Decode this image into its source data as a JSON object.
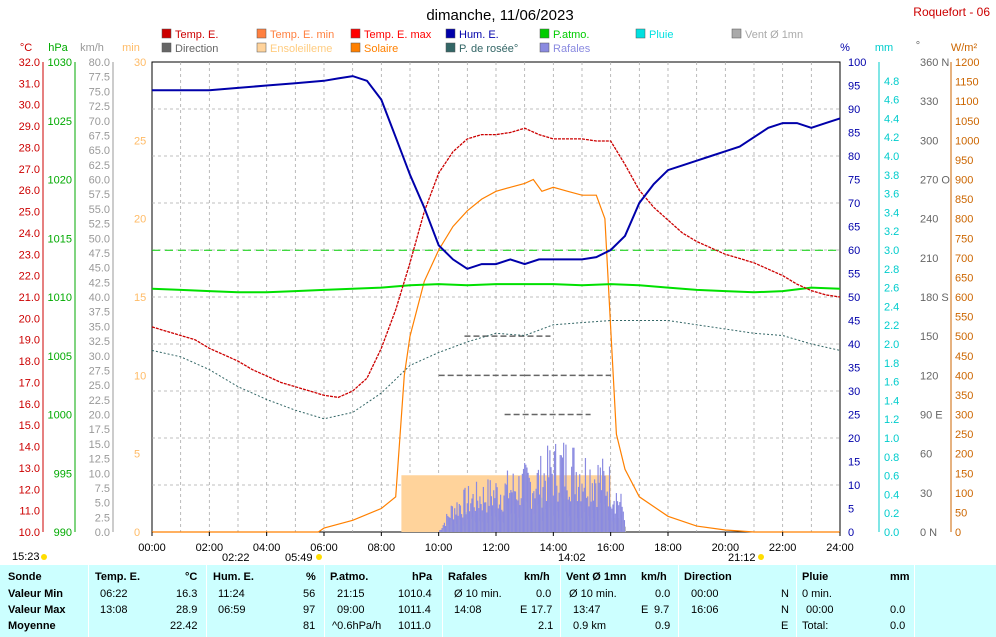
{
  "header": {
    "title": "dimanche, 11/06/2023",
    "station": "Roquefort - 06"
  },
  "legend": [
    {
      "label": "Temp. E.",
      "color": "#cc0000"
    },
    {
      "label": "Temp. E. min",
      "color": "#ff8040"
    },
    {
      "label": "Temp. E. max",
      "color": "#ff0000"
    },
    {
      "label": "Hum. E.",
      "color": "#0000aa"
    },
    {
      "label": "P.atmo.",
      "color": "#00cc00"
    },
    {
      "label": "Pluie",
      "color": "#00e0e0"
    },
    {
      "label": "Vent Ø 1mn",
      "color": "#aaaaaa"
    },
    {
      "label": "Direction",
      "color": "#666666"
    },
    {
      "label": "Ensoleilleme",
      "color": "#ffd39b"
    },
    {
      "label": "Solaire",
      "color": "#ff8000"
    },
    {
      "label": "P. de rosée°",
      "color": "#336666"
    },
    {
      "label": "Rafales",
      "color": "#8a8ae0"
    }
  ],
  "axis_units": {
    "temp": "°C",
    "pressure": "hPa",
    "wind": "km/h",
    "minutes": "min",
    "humidity": "%",
    "rain": "mm",
    "direction": "°",
    "solar": "W/m²"
  },
  "axes": {
    "temp_ticks": [
      "32.0",
      "31.0",
      "30.0",
      "29.0",
      "28.0",
      "27.0",
      "26.0",
      "25.0",
      "24.0",
      "23.0",
      "22.0",
      "21.0",
      "20.0",
      "19.0",
      "18.0",
      "17.0",
      "16.0",
      "15.0",
      "14.0",
      "13.0",
      "12.0",
      "11.0",
      "10.0"
    ],
    "pressure_ticks": [
      "1030",
      "1025",
      "1020",
      "1015",
      "1010",
      "1005",
      "1000",
      "995",
      "990"
    ],
    "wind_ticks": [
      "80.0",
      "77.5",
      "75.0",
      "72.5",
      "70.0",
      "67.5",
      "65.0",
      "62.5",
      "60.0",
      "57.5",
      "55.0",
      "52.5",
      "50.0",
      "47.5",
      "45.0",
      "42.5",
      "40.0",
      "37.5",
      "35.0",
      "32.5",
      "30.0",
      "27.5",
      "25.0",
      "22.5",
      "20.0",
      "17.5",
      "15.0",
      "12.5",
      "10.0",
      "7.5",
      "5.0",
      "2.5",
      "0.0"
    ],
    "minutes_ticks": [
      "30",
      "25",
      "20",
      "15",
      "10",
      "5",
      "0"
    ],
    "humidity_ticks": [
      "100",
      "95",
      "90",
      "85",
      "80",
      "75",
      "70",
      "65",
      "60",
      "55",
      "50",
      "45",
      "40",
      "35",
      "30",
      "25",
      "20",
      "15",
      "10",
      "5",
      "0"
    ],
    "rain_ticks": [
      "4.8",
      "4.6",
      "4.4",
      "4.2",
      "4.0",
      "3.8",
      "3.6",
      "3.4",
      "3.2",
      "3.0",
      "2.8",
      "2.6",
      "2.4",
      "2.2",
      "2.0",
      "1.8",
      "1.6",
      "1.4",
      "1.2",
      "1.0",
      "0.8",
      "0.6",
      "0.4",
      "0.2",
      "0.0"
    ],
    "direction_ticks": [
      "360 N",
      "330",
      "300",
      "270 O",
      "240",
      "210",
      "180 S",
      "150",
      "120",
      "90 E",
      "60",
      "30",
      "0 N"
    ],
    "solar_ticks": [
      "1200",
      "1150",
      "1100",
      "1050",
      "1000",
      "950",
      "900",
      "850",
      "800",
      "750",
      "700",
      "650",
      "600",
      "550",
      "500",
      "450",
      "400",
      "350",
      "300",
      "250",
      "200",
      "150",
      "100",
      "50",
      "0"
    ],
    "x_ticks": [
      "00:00",
      "02:00",
      "04:00",
      "06:00",
      "08:00",
      "10:00",
      "12:00",
      "14:00",
      "16:00",
      "18:00",
      "20:00",
      "22:00",
      "24:00"
    ]
  },
  "time_markers": {
    "left": "15:23",
    "sunrise_dir": "02:22",
    "sunrise": "05:49",
    "noon": "14:02",
    "sunset": "21:12"
  },
  "chart_data": {
    "type": "line",
    "title": "dimanche, 11/06/2023",
    "x_unit": "hours",
    "xlim": [
      0,
      24
    ],
    "series": [
      {
        "name": "Temp. E.",
        "axis": "°C",
        "ylim": [
          10,
          32
        ],
        "color": "#cc0000",
        "x": [
          0,
          0.5,
          1,
          1.5,
          2,
          2.5,
          3,
          3.5,
          4,
          4.5,
          5,
          5.5,
          6,
          6.5,
          7,
          7.5,
          8,
          8.5,
          9,
          9.5,
          10,
          10.5,
          11,
          11.5,
          12,
          12.5,
          13,
          13.5,
          14,
          14.5,
          15,
          15.5,
          16,
          16.5,
          17,
          17.5,
          18,
          18.5,
          19,
          19.5,
          20,
          20.5,
          21,
          21.5,
          22,
          22.5,
          23,
          23.5,
          24
        ],
        "y": [
          19.6,
          19.4,
          19.2,
          19.0,
          18.6,
          18.3,
          18.0,
          17.6,
          17.3,
          17.0,
          16.8,
          16.6,
          16.4,
          16.3,
          16.6,
          17.2,
          18.6,
          20.4,
          22.6,
          25.0,
          26.8,
          27.8,
          28.4,
          28.6,
          28.6,
          28.7,
          28.9,
          28.6,
          28.4,
          28.4,
          28.4,
          28.3,
          28.3,
          27.2,
          26.0,
          25.2,
          24.6,
          24.0,
          23.6,
          23.3,
          23.0,
          22.8,
          22.6,
          22.3,
          22.0,
          21.6,
          21.3,
          21.1,
          21.0
        ]
      },
      {
        "name": "Hum. E.",
        "axis": "%",
        "ylim": [
          0,
          100
        ],
        "color": "#0000aa",
        "x": [
          0,
          1,
          2,
          3,
          4,
          5,
          6,
          6.5,
          7,
          7.5,
          8,
          8.5,
          9,
          9.5,
          10,
          10.5,
          11,
          11.5,
          12,
          12.5,
          13,
          13.5,
          14,
          14.5,
          15,
          15.5,
          16,
          16.5,
          17,
          17.5,
          18,
          18.5,
          19,
          19.5,
          20,
          20.5,
          21,
          21.5,
          22,
          22.5,
          23,
          23.5,
          24
        ],
        "y": [
          94,
          94,
          94,
          94.5,
          95,
          95.5,
          96,
          96.5,
          97,
          96,
          92,
          84,
          76,
          69,
          61,
          58,
          56,
          57,
          57,
          58,
          57,
          58,
          58,
          58,
          58,
          58.5,
          60,
          63,
          70,
          74,
          77,
          78,
          79,
          80,
          81,
          82,
          84,
          86,
          87,
          87,
          86,
          87,
          88
        ]
      },
      {
        "name": "P.atmo.",
        "axis": "hPa",
        "ylim": [
          990,
          1030
        ],
        "color": "#00e000",
        "x": [
          0,
          1,
          2,
          3,
          4,
          5,
          6,
          7,
          8,
          9,
          10,
          11,
          12,
          13,
          14,
          15,
          16,
          17,
          18,
          19,
          20,
          21,
          22,
          23,
          24
        ],
        "y": [
          1010.7,
          1010.6,
          1010.5,
          1010.4,
          1010.4,
          1010.5,
          1010.6,
          1010.7,
          1010.8,
          1011.0,
          1011.1,
          1011.0,
          1011.1,
          1011.1,
          1011.1,
          1011.0,
          1011.1,
          1011.0,
          1010.8,
          1010.6,
          1010.5,
          1010.4,
          1010.5,
          1010.8,
          1010.7
        ]
      },
      {
        "name": "P. de rosée°",
        "axis": "°C",
        "ylim": [
          10,
          32
        ],
        "color": "#336666",
        "x": [
          0,
          1,
          2,
          3,
          4,
          5,
          6,
          7,
          8,
          9,
          10,
          11,
          12,
          13,
          14,
          15,
          16,
          17,
          18,
          19,
          20,
          21,
          22,
          23,
          24
        ],
        "y": [
          18.5,
          18.2,
          17.6,
          16.8,
          16.2,
          15.7,
          15.3,
          15.6,
          16.5,
          17.8,
          18.4,
          18.9,
          19.3,
          19.2,
          19.7,
          19.8,
          19.9,
          19.9,
          19.9,
          19.7,
          19.5,
          19.3,
          19.2,
          18.8,
          18.5
        ]
      },
      {
        "name": "Solaire",
        "axis": "W/m²",
        "ylim": [
          0,
          1200
        ],
        "color": "#ff8000",
        "x": [
          0,
          5.8,
          6,
          7,
          8,
          8.5,
          8.8,
          9,
          9.5,
          10,
          10.5,
          11,
          11.5,
          12,
          12.5,
          13,
          13.3,
          13.6,
          14,
          14.5,
          15,
          15.5,
          15.8,
          16,
          16.2,
          16.5,
          17,
          18,
          19,
          20,
          21,
          21.2,
          24
        ],
        "y": [
          0,
          0,
          10,
          30,
          60,
          90,
          400,
          500,
          640,
          720,
          780,
          820,
          850,
          870,
          880,
          890,
          900,
          870,
          880,
          870,
          860,
          860,
          800,
          520,
          250,
          160,
          90,
          40,
          15,
          5,
          0,
          0,
          0
        ]
      },
      {
        "name": "Rafales",
        "axis": "km/h",
        "ylim": [
          0,
          80
        ],
        "color": "#8a8ae0",
        "x": [
          0,
          10,
          10.5,
          11,
          11.5,
          12,
          12.5,
          13,
          13.5,
          14,
          14.5,
          15,
          15.5,
          16,
          16.5,
          17,
          24
        ],
        "y": [
          0,
          0,
          6,
          8,
          9,
          10,
          11,
          12,
          13,
          16,
          17,
          15,
          14,
          12,
          5,
          0,
          0
        ]
      }
    ],
    "legend_position": "top"
  },
  "summary": {
    "headers": {
      "sonde": "Sonde",
      "temp": "Temp. E.",
      "temp_unit": "°C",
      "hum": "Hum. E.",
      "hum_unit": "%",
      "patmo": "P.atmo.",
      "patmo_unit": "hPa",
      "rafales": "Rafales",
      "rafales_unit": "km/h",
      "vent": "Vent Ø 1mn",
      "vent_unit": "km/h",
      "direction": "Direction",
      "pluie": "Pluie",
      "pluie_unit": "mm"
    },
    "rows": [
      {
        "label": "Valeur Min",
        "temp_time": "06:22",
        "temp_val": "16.3",
        "hum_time": "11:24",
        "hum_val": "56",
        "patmo_time": "21:15",
        "patmo_val": "1010.4",
        "raf_time": "Ø 10 min.",
        "raf_dir": "",
        "raf_val": "0.0",
        "vent_time": "Ø 10 min.",
        "vent_dir": "",
        "vent_val": "0.0",
        "dir_time": "00:00",
        "dir_val": "N",
        "pluie_time": "0 min.",
        "pluie_val": ""
      },
      {
        "label": "Valeur Max",
        "temp_time": "13:08",
        "temp_val": "28.9",
        "hum_time": "06:59",
        "hum_val": "97",
        "patmo_time": "09:00",
        "patmo_val": "1011.4",
        "raf_time": "14:08",
        "raf_dir": "E",
        "raf_val": "17.7",
        "vent_time": "13:47",
        "vent_dir": "E",
        "vent_val": "9.7",
        "dir_time": "16:06",
        "dir_val": "N",
        "pluie_time": "00:00",
        "pluie_val": "0.0"
      },
      {
        "label": "Moyenne",
        "temp_time": "",
        "temp_val": "22.42",
        "hum_time": "",
        "hum_val": "81",
        "patmo_time": "^0.6hPa/h",
        "patmo_val": "1011.0",
        "raf_time": "",
        "raf_dir": "",
        "raf_val": "2.1",
        "vent_time": "0.9 km",
        "vent_dir": "",
        "vent_val": "0.9",
        "dir_time": "",
        "dir_val": "E",
        "pluie_time": "Total:",
        "pluie_val": "0.0"
      }
    ]
  }
}
